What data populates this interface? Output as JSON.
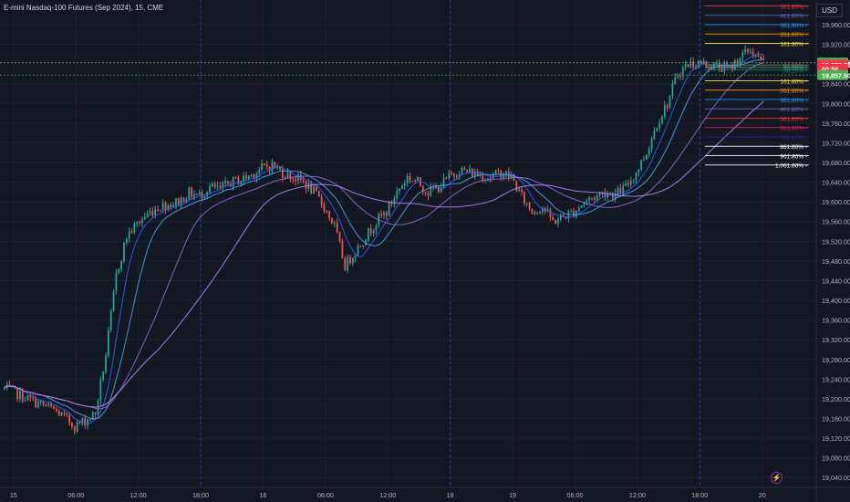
{
  "header": {
    "title": "E-mini Nasdaq-100 Futures (Sep 2024), 15, CME",
    "currency": "USD"
  },
  "chart_data": {
    "type": "candlestick",
    "title": "E-mini Nasdaq-100 Futures (Sep 2024), 15, CME",
    "y_ticks": [
      "19,960.00",
      "19,920.00",
      "19,880.00",
      "19,840.00",
      "19,800.00",
      "19,760.00",
      "19,720.00",
      "19,680.00",
      "19,640.00",
      "19,600.00",
      "19,560.00",
      "19,520.00",
      "19,480.00",
      "19,440.00",
      "19,400.00",
      "19,360.00",
      "19,320.00",
      "19,280.00",
      "19,240.00",
      "19,200.00",
      "19,160.00",
      "19,120.00",
      "19,080.00",
      "19,040.00"
    ],
    "ylim": [
      19020,
      20010
    ],
    "x_ticks": [
      {
        "label": "15",
        "t": 0
      },
      {
        "label": "06:00",
        "t": 6
      },
      {
        "label": "12:00",
        "t": 12
      },
      {
        "label": "18:00",
        "t": 18
      },
      {
        "label": "16",
        "t": 24
      },
      {
        "label": "06:00",
        "t": 30
      },
      {
        "label": "12:00",
        "t": 36
      },
      {
        "label": "18",
        "t": 42
      },
      {
        "label": "19",
        "t": 48
      },
      {
        "label": "06:00",
        "t": 54
      },
      {
        "label": "12:00",
        "t": 60
      },
      {
        "label": "18:00",
        "t": 66
      },
      {
        "label": "20",
        "t": 72
      }
    ],
    "session_breaks_t": [
      18,
      42,
      66
    ],
    "price_path": [
      [
        -1,
        19222
      ],
      [
        0,
        19215
      ],
      [
        2,
        19195
      ],
      [
        4,
        19178
      ],
      [
        5,
        19162
      ],
      [
        6,
        19145
      ],
      [
        7,
        19155
      ],
      [
        8,
        19170
      ],
      [
        9,
        19290
      ],
      [
        10,
        19450
      ],
      [
        11,
        19530
      ],
      [
        12,
        19555
      ],
      [
        13,
        19575
      ],
      [
        14,
        19590
      ],
      [
        15,
        19595
      ],
      [
        16,
        19600
      ],
      [
        17,
        19618
      ],
      [
        18,
        19612
      ],
      [
        19,
        19630
      ],
      [
        20,
        19625
      ],
      [
        21,
        19640
      ],
      [
        22,
        19645
      ],
      [
        23,
        19655
      ],
      [
        24,
        19668
      ],
      [
        25,
        19675
      ],
      [
        26,
        19660
      ],
      [
        27,
        19650
      ],
      [
        28,
        19640
      ],
      [
        29,
        19620
      ],
      [
        30,
        19590
      ],
      [
        31,
        19550
      ],
      [
        32,
        19470
      ],
      [
        33,
        19500
      ],
      [
        34,
        19530
      ],
      [
        35,
        19560
      ],
      [
        36,
        19580
      ],
      [
        37,
        19620
      ],
      [
        38,
        19650
      ],
      [
        39,
        19640
      ],
      [
        40,
        19620
      ],
      [
        41,
        19630
      ],
      [
        42,
        19650
      ],
      [
        43,
        19665
      ],
      [
        44,
        19660
      ],
      [
        45,
        19655
      ],
      [
        46,
        19650
      ],
      [
        47,
        19660
      ],
      [
        48,
        19650
      ],
      [
        49,
        19610
      ],
      [
        50,
        19580
      ],
      [
        51,
        19590
      ],
      [
        52,
        19560
      ],
      [
        53,
        19570
      ],
      [
        54,
        19580
      ],
      [
        55,
        19600
      ],
      [
        56,
        19610
      ],
      [
        57,
        19620
      ],
      [
        58,
        19615
      ],
      [
        59,
        19630
      ],
      [
        60,
        19660
      ],
      [
        61,
        19700
      ],
      [
        62,
        19760
      ],
      [
        63,
        19800
      ],
      [
        64,
        19860
      ],
      [
        65,
        19880
      ],
      [
        66,
        19882
      ],
      [
        67,
        19878
      ],
      [
        68,
        19875
      ],
      [
        69,
        19870
      ],
      [
        70,
        19895
      ],
      [
        71,
        19908
      ],
      [
        72,
        19885
      ]
    ],
    "series": [
      {
        "name": "",
        "color": "#2962ff",
        "period": 8
      },
      {
        "name": "",
        "color": "#42a5f5",
        "period": 16
      },
      {
        "name": "",
        "color": "#8e6bd8",
        "period": 34
      },
      {
        "name": "",
        "color": "#b388ff",
        "period": 60
      }
    ],
    "price_labels": [
      {
        "text": "19,882.75",
        "value": 19882.75,
        "bg": "#4caf50",
        "color": "#ffffff"
      },
      {
        "text": "19,878.50",
        "value": 19878.5,
        "bg": "#f23645",
        "color": "#ffffff"
      },
      {
        "text": "00:56",
        "value": 19870,
        "bg": "#f23645",
        "color": "#ffffff"
      },
      {
        "text": "19,857.50",
        "value": 19857.5,
        "bg": "#4caf50",
        "color": "#ffffff"
      }
    ],
    "fib_levels": [
      {
        "label": "561.80%",
        "value": 19998,
        "color": "#f23645"
      },
      {
        "label": "461.80%",
        "value": 19979,
        "color": "#5c6bc0"
      },
      {
        "label": "361.80%",
        "value": 19960,
        "color": "#2196f3"
      },
      {
        "label": "261.80%",
        "value": 19941,
        "color": "#ff9800"
      },
      {
        "label": "161.80%",
        "value": 19922,
        "color": "#ffeb3b"
      },
      {
        "label": "61.80%",
        "value": 19878,
        "color": "#787b86"
      },
      {
        "label": "50.00%",
        "value": 19873,
        "color": "#4caf50"
      },
      {
        "label": "38.20%",
        "value": 19868,
        "color": "#00897b"
      },
      {
        "label": "161.80%",
        "value": 19846,
        "color": "#ffeb3b"
      },
      {
        "label": "261.80%",
        "value": 19827,
        "color": "#ff9800"
      },
      {
        "label": "361.80%",
        "value": 19808,
        "color": "#2196f3"
      },
      {
        "label": "461.80%",
        "value": 19789,
        "color": "#5c6bc0"
      },
      {
        "label": "561.80%",
        "value": 19770,
        "color": "#f23645"
      },
      {
        "label": "661.80%",
        "value": 19751,
        "color": "#e91e63"
      },
      {
        "label": "761.80%",
        "value": 19732,
        "color": "#311b92"
      },
      {
        "label": "861.80%",
        "value": 19713,
        "color": "#ffffff"
      },
      {
        "label": "961.80%",
        "value": 19694,
        "color": "#ffffff"
      },
      {
        "label": "1,061.80%",
        "value": 19675,
        "color": "#ffffff"
      }
    ]
  }
}
